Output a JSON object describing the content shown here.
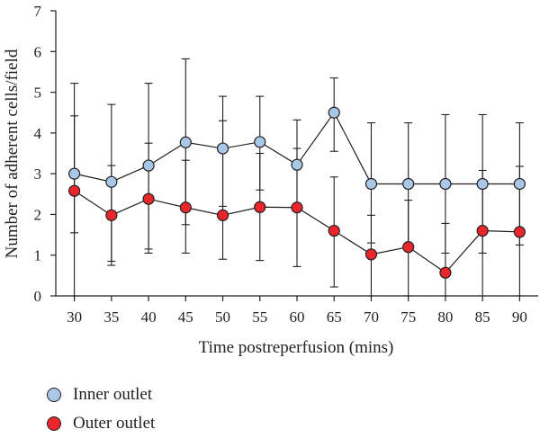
{
  "chart_data": {
    "type": "line",
    "xlabel": "Time postreperfusion (mins)",
    "ylabel": "Number of adherent cells/field",
    "x": [
      30,
      35,
      40,
      45,
      50,
      55,
      60,
      65,
      70,
      75,
      80,
      85,
      90
    ],
    "xlim": [
      27.5,
      92.5
    ],
    "ylim": [
      0,
      7
    ],
    "y_ticks": [
      0,
      1,
      2,
      3,
      4,
      5,
      6,
      7
    ],
    "grid": false,
    "legend_position": "bottom-left",
    "series": [
      {
        "name": "Inner outlet",
        "color": "#a9c8e6",
        "values": [
          3.0,
          2.8,
          3.2,
          3.77,
          3.62,
          3.78,
          3.22,
          4.5,
          2.75,
          2.75,
          2.75,
          2.75,
          2.75
        ],
        "error_low": [
          1.55,
          0.85,
          1.15,
          1.75,
          2.2,
          2.6,
          2.1,
          3.55,
          1.3,
          1.3,
          1.05,
          1.05,
          1.25
        ],
        "error_high": [
          4.42,
          4.7,
          5.22,
          5.82,
          4.9,
          4.9,
          4.32,
          5.35,
          4.25,
          4.25,
          4.45,
          4.45,
          4.25
        ]
      },
      {
        "name": "Outer outlet",
        "color": "#e8262c",
        "values": [
          2.58,
          1.98,
          2.38,
          2.17,
          1.98,
          2.18,
          2.17,
          1.6,
          1.02,
          1.2,
          0.57,
          1.6,
          1.57
        ],
        "error_low": [
          0.0,
          0.75,
          1.05,
          1.05,
          0.9,
          0.87,
          0.72,
          0.22,
          0.0,
          0.0,
          0.0,
          0.0,
          0.0
        ],
        "error_high": [
          5.22,
          3.2,
          3.75,
          3.33,
          4.3,
          3.5,
          3.62,
          2.92,
          1.98,
          2.35,
          1.78,
          3.08,
          3.18
        ]
      }
    ]
  }
}
